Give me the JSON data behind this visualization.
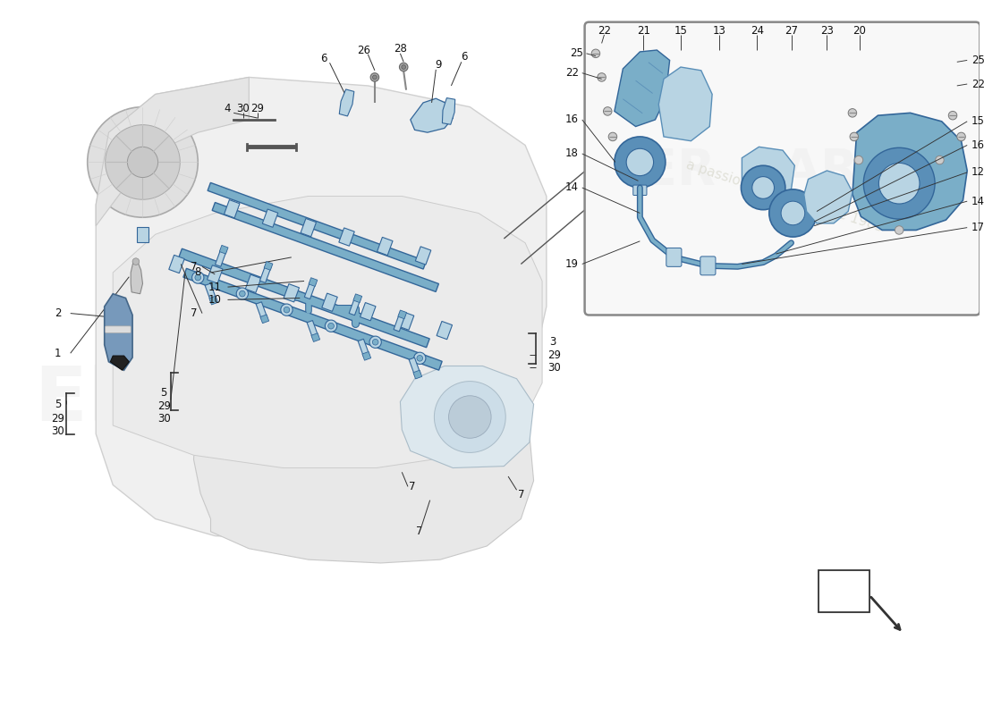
{
  "bg_color": "#ffffff",
  "blue_color": "#7aaec8",
  "light_blue": "#b8d4e3",
  "mid_blue": "#5a8fb8",
  "dark_blue": "#336699",
  "engine_fill": "#f2f2f2",
  "engine_edge": "#cccccc",
  "line_color": "#333333",
  "label_color": "#111111",
  "wm1_color": "#e8e8e8",
  "wm2_color": "#d8d8cc",
  "inset_fill": "#f8f8f8",
  "inset_edge": "#888888",
  "main_labels": [
    [
      15,
      440,
      "2"
    ],
    [
      15,
      390,
      "1"
    ],
    [
      15,
      350,
      "5"
    ],
    [
      15,
      330,
      "29"
    ],
    [
      15,
      315,
      "30"
    ],
    [
      215,
      685,
      "4"
    ],
    [
      232,
      685,
      "30"
    ],
    [
      248,
      685,
      "29"
    ],
    [
      325,
      745,
      "6"
    ],
    [
      372,
      755,
      "26"
    ],
    [
      415,
      757,
      "28"
    ],
    [
      460,
      738,
      "9"
    ],
    [
      490,
      748,
      "6"
    ],
    [
      172,
      500,
      "7"
    ],
    [
      172,
      445,
      "7"
    ],
    [
      430,
      240,
      "7"
    ],
    [
      560,
      230,
      "7"
    ],
    [
      194,
      560,
      "10"
    ],
    [
      194,
      540,
      "11"
    ],
    [
      175,
      490,
      "8"
    ],
    [
      155,
      375,
      "5"
    ],
    [
      155,
      360,
      "29"
    ],
    [
      155,
      345,
      "30"
    ],
    [
      580,
      420,
      "3"
    ],
    [
      585,
      405,
      "29"
    ],
    [
      585,
      390,
      "30"
    ]
  ],
  "inset_top_labels": [
    [
      660,
      780,
      "22"
    ],
    [
      706,
      780,
      "21"
    ],
    [
      751,
      780,
      "15"
    ],
    [
      796,
      780,
      "13"
    ],
    [
      840,
      780,
      "24"
    ],
    [
      880,
      780,
      "27"
    ],
    [
      922,
      780,
      "23"
    ],
    [
      960,
      780,
      "20"
    ]
  ],
  "inset_left_labels": [
    [
      630,
      755,
      "25"
    ],
    [
      626,
      730,
      "22"
    ],
    [
      624,
      670,
      "16"
    ],
    [
      624,
      625,
      "18"
    ],
    [
      624,
      570,
      "14"
    ],
    [
      624,
      465,
      "19"
    ]
  ],
  "inset_right_labels": [
    [
      1090,
      748,
      "25"
    ],
    [
      1090,
      718,
      "22"
    ],
    [
      1090,
      672,
      "15"
    ],
    [
      1090,
      645,
      "16"
    ],
    [
      1090,
      612,
      "12"
    ],
    [
      1090,
      578,
      "14"
    ],
    [
      1090,
      548,
      "17"
    ]
  ]
}
